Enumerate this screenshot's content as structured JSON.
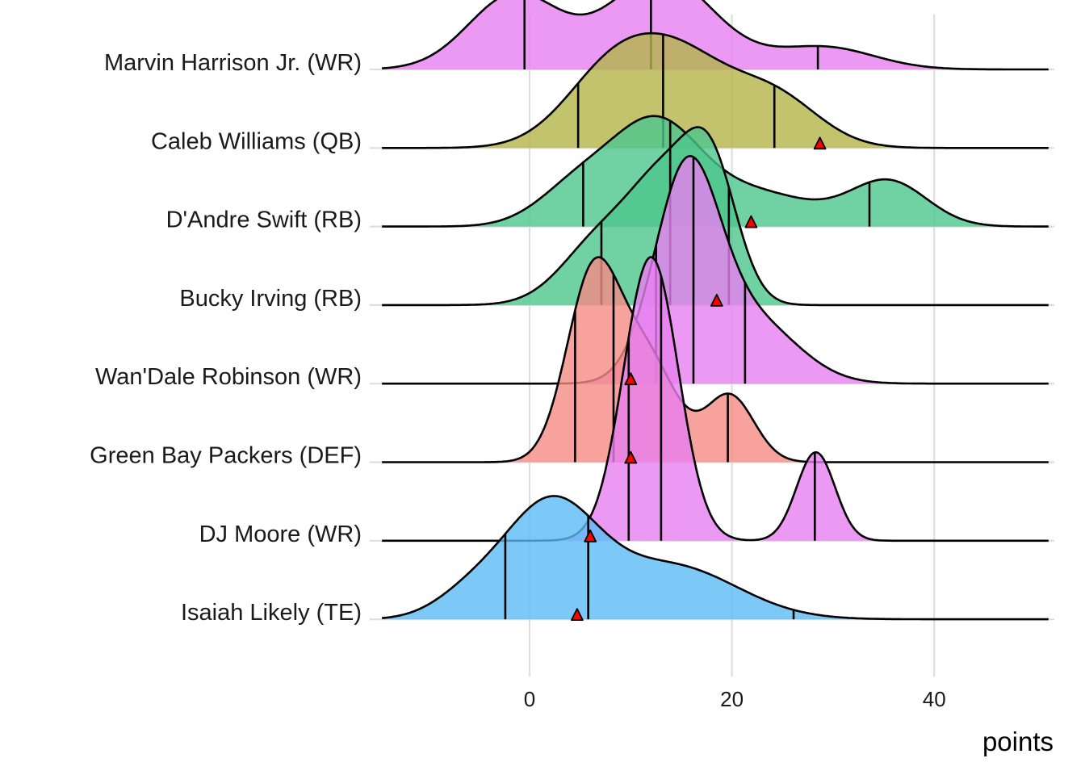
{
  "chart_data": {
    "type": "ridgeline",
    "title": "",
    "xlabel": "points",
    "ylabel": "",
    "xlim": [
      -14.6,
      51.3
    ],
    "x_ticks": [
      0,
      20,
      40
    ],
    "x_tick_labels": [
      "0",
      "20",
      "40"
    ],
    "grid": "vertical major gridlines at 0, 20, 40; horizontal baselines per row",
    "legend": "none",
    "marker_description": "red triangle = actual points scored",
    "quantile_lines": "vertical lines inside each ridge at quantiles (approx. 25%, 50%, 75%)",
    "series": [
      {
        "name": "Marvin Harrison Jr. (WR)",
        "color": "#e77ff0",
        "density_components": [
          {
            "mean": -1.5,
            "sd": 4.5,
            "weight": 0.36
          },
          {
            "mean": 13.0,
            "sd": 5.2,
            "weight": 0.52
          },
          {
            "mean": 29.0,
            "sd": 5.0,
            "weight": 0.12
          }
        ],
        "quantiles": [
          -0.5,
          12.0,
          28.5
        ],
        "actual": null
      },
      {
        "name": "Caleb Williams (QB)",
        "color": "#b4b44a",
        "density_components": [
          {
            "mean": 8.5,
            "sd": 4.8,
            "weight": 0.42
          },
          {
            "mean": 15.5,
            "sd": 4.5,
            "weight": 0.33
          },
          {
            "mean": 24.0,
            "sd": 4.5,
            "weight": 0.25
          }
        ],
        "quantiles": [
          4.8,
          13.2,
          24.2
        ],
        "actual": 28.7
      },
      {
        "name": "D'Andre Swift (RB)",
        "color": "#4cc58c",
        "density_components": [
          {
            "mean": 5.0,
            "sd": 4.0,
            "weight": 0.18
          },
          {
            "mean": 12.5,
            "sd": 4.2,
            "weight": 0.42
          },
          {
            "mean": 22.0,
            "sd": 6.0,
            "weight": 0.22
          },
          {
            "mean": 35.5,
            "sd": 3.8,
            "weight": 0.18
          }
        ],
        "quantiles": [
          5.3,
          13.9,
          33.6
        ],
        "actual": 21.9
      },
      {
        "name": "Bucky Irving (RB)",
        "color": "#4cc58c",
        "density_components": [
          {
            "mean": 7.5,
            "sd": 4.0,
            "weight": 0.3
          },
          {
            "mean": 13.5,
            "sd": 3.2,
            "weight": 0.35
          },
          {
            "mean": 18.0,
            "sd": 2.6,
            "weight": 0.35
          }
        ],
        "quantiles": [
          7.1,
          13.9,
          19.7
        ],
        "actual": 18.5
      },
      {
        "name": "Wan'Dale Robinson (WR)",
        "color": "#e77ff0",
        "density_components": [
          {
            "mean": 15.5,
            "sd": 3.2,
            "weight": 0.7
          },
          {
            "mean": 22.0,
            "sd": 4.5,
            "weight": 0.3
          }
        ],
        "quantiles": [
          12.5,
          16.2,
          21.3
        ],
        "actual": 10.0
      },
      {
        "name": "Green Bay Packers (DEF)",
        "color": "#f68b85",
        "density_components": [
          {
            "mean": 6.2,
            "sd": 2.6,
            "weight": 0.5
          },
          {
            "mean": 11.5,
            "sd": 3.0,
            "weight": 0.33
          },
          {
            "mean": 19.8,
            "sd": 2.4,
            "weight": 0.17
          }
        ],
        "quantiles": [
          4.5,
          8.3,
          19.6
        ],
        "actual": 10.0
      },
      {
        "name": "DJ Moore (WR)",
        "color": "#e77ff0",
        "density_components": [
          {
            "mean": 12.0,
            "sd": 2.7,
            "weight": 0.82
          },
          {
            "mean": 28.3,
            "sd": 1.9,
            "weight": 0.18
          }
        ],
        "quantiles": [
          9.8,
          13.0,
          28.2
        ],
        "actual": 6.0
      },
      {
        "name": "Isaiah Likely (TE)",
        "color": "#5bbcf6",
        "density_components": [
          {
            "mean": 2.0,
            "sd": 4.6,
            "weight": 0.55
          },
          {
            "mean": -6.0,
            "sd": 3.5,
            "weight": 0.08
          },
          {
            "mean": 14.0,
            "sd": 6.5,
            "weight": 0.37
          }
        ],
        "quantiles": [
          -2.4,
          5.8,
          26.1
        ],
        "actual": 4.7
      }
    ]
  }
}
